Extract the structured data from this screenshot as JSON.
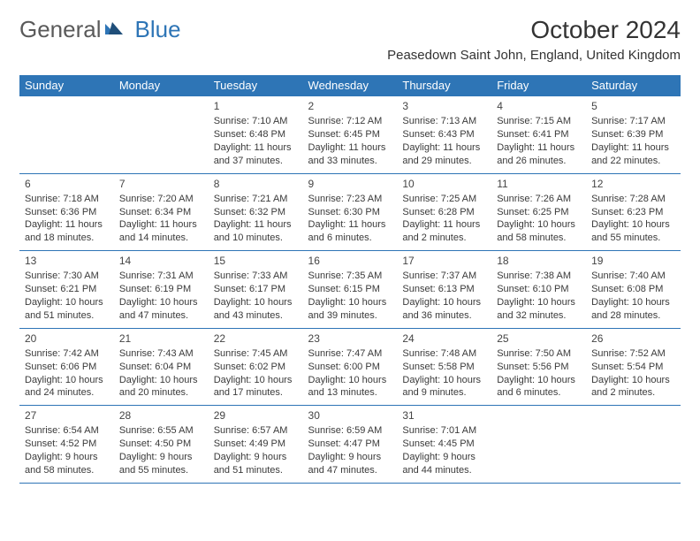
{
  "logo": {
    "text_general": "General",
    "text_blue": "Blue"
  },
  "header": {
    "month_title": "October 2024",
    "location": "Peasedown Saint John, England, United Kingdom"
  },
  "colors": {
    "header_bg": "#2e75b6",
    "header_text": "#ffffff",
    "border": "#2e75b6",
    "body_text": "#3a3a3a"
  },
  "weekdays": [
    "Sunday",
    "Monday",
    "Tuesday",
    "Wednesday",
    "Thursday",
    "Friday",
    "Saturday"
  ],
  "cells": [
    {
      "day": "",
      "lines": [
        "",
        "",
        "",
        ""
      ]
    },
    {
      "day": "",
      "lines": [
        "",
        "",
        "",
        ""
      ]
    },
    {
      "day": "1",
      "lines": [
        "Sunrise: 7:10 AM",
        "Sunset: 6:48 PM",
        "Daylight: 11 hours",
        "and 37 minutes."
      ]
    },
    {
      "day": "2",
      "lines": [
        "Sunrise: 7:12 AM",
        "Sunset: 6:45 PM",
        "Daylight: 11 hours",
        "and 33 minutes."
      ]
    },
    {
      "day": "3",
      "lines": [
        "Sunrise: 7:13 AM",
        "Sunset: 6:43 PM",
        "Daylight: 11 hours",
        "and 29 minutes."
      ]
    },
    {
      "day": "4",
      "lines": [
        "Sunrise: 7:15 AM",
        "Sunset: 6:41 PM",
        "Daylight: 11 hours",
        "and 26 minutes."
      ]
    },
    {
      "day": "5",
      "lines": [
        "Sunrise: 7:17 AM",
        "Sunset: 6:39 PM",
        "Daylight: 11 hours",
        "and 22 minutes."
      ]
    },
    {
      "day": "6",
      "lines": [
        "Sunrise: 7:18 AM",
        "Sunset: 6:36 PM",
        "Daylight: 11 hours",
        "and 18 minutes."
      ]
    },
    {
      "day": "7",
      "lines": [
        "Sunrise: 7:20 AM",
        "Sunset: 6:34 PM",
        "Daylight: 11 hours",
        "and 14 minutes."
      ]
    },
    {
      "day": "8",
      "lines": [
        "Sunrise: 7:21 AM",
        "Sunset: 6:32 PM",
        "Daylight: 11 hours",
        "and 10 minutes."
      ]
    },
    {
      "day": "9",
      "lines": [
        "Sunrise: 7:23 AM",
        "Sunset: 6:30 PM",
        "Daylight: 11 hours",
        "and 6 minutes."
      ]
    },
    {
      "day": "10",
      "lines": [
        "Sunrise: 7:25 AM",
        "Sunset: 6:28 PM",
        "Daylight: 11 hours",
        "and 2 minutes."
      ]
    },
    {
      "day": "11",
      "lines": [
        "Sunrise: 7:26 AM",
        "Sunset: 6:25 PM",
        "Daylight: 10 hours",
        "and 58 minutes."
      ]
    },
    {
      "day": "12",
      "lines": [
        "Sunrise: 7:28 AM",
        "Sunset: 6:23 PM",
        "Daylight: 10 hours",
        "and 55 minutes."
      ]
    },
    {
      "day": "13",
      "lines": [
        "Sunrise: 7:30 AM",
        "Sunset: 6:21 PM",
        "Daylight: 10 hours",
        "and 51 minutes."
      ]
    },
    {
      "day": "14",
      "lines": [
        "Sunrise: 7:31 AM",
        "Sunset: 6:19 PM",
        "Daylight: 10 hours",
        "and 47 minutes."
      ]
    },
    {
      "day": "15",
      "lines": [
        "Sunrise: 7:33 AM",
        "Sunset: 6:17 PM",
        "Daylight: 10 hours",
        "and 43 minutes."
      ]
    },
    {
      "day": "16",
      "lines": [
        "Sunrise: 7:35 AM",
        "Sunset: 6:15 PM",
        "Daylight: 10 hours",
        "and 39 minutes."
      ]
    },
    {
      "day": "17",
      "lines": [
        "Sunrise: 7:37 AM",
        "Sunset: 6:13 PM",
        "Daylight: 10 hours",
        "and 36 minutes."
      ]
    },
    {
      "day": "18",
      "lines": [
        "Sunrise: 7:38 AM",
        "Sunset: 6:10 PM",
        "Daylight: 10 hours",
        "and 32 minutes."
      ]
    },
    {
      "day": "19",
      "lines": [
        "Sunrise: 7:40 AM",
        "Sunset: 6:08 PM",
        "Daylight: 10 hours",
        "and 28 minutes."
      ]
    },
    {
      "day": "20",
      "lines": [
        "Sunrise: 7:42 AM",
        "Sunset: 6:06 PM",
        "Daylight: 10 hours",
        "and 24 minutes."
      ]
    },
    {
      "day": "21",
      "lines": [
        "Sunrise: 7:43 AM",
        "Sunset: 6:04 PM",
        "Daylight: 10 hours",
        "and 20 minutes."
      ]
    },
    {
      "day": "22",
      "lines": [
        "Sunrise: 7:45 AM",
        "Sunset: 6:02 PM",
        "Daylight: 10 hours",
        "and 17 minutes."
      ]
    },
    {
      "day": "23",
      "lines": [
        "Sunrise: 7:47 AM",
        "Sunset: 6:00 PM",
        "Daylight: 10 hours",
        "and 13 minutes."
      ]
    },
    {
      "day": "24",
      "lines": [
        "Sunrise: 7:48 AM",
        "Sunset: 5:58 PM",
        "Daylight: 10 hours",
        "and 9 minutes."
      ]
    },
    {
      "day": "25",
      "lines": [
        "Sunrise: 7:50 AM",
        "Sunset: 5:56 PM",
        "Daylight: 10 hours",
        "and 6 minutes."
      ]
    },
    {
      "day": "26",
      "lines": [
        "Sunrise: 7:52 AM",
        "Sunset: 5:54 PM",
        "Daylight: 10 hours",
        "and 2 minutes."
      ]
    },
    {
      "day": "27",
      "lines": [
        "Sunrise: 6:54 AM",
        "Sunset: 4:52 PM",
        "Daylight: 9 hours",
        "and 58 minutes."
      ]
    },
    {
      "day": "28",
      "lines": [
        "Sunrise: 6:55 AM",
        "Sunset: 4:50 PM",
        "Daylight: 9 hours",
        "and 55 minutes."
      ]
    },
    {
      "day": "29",
      "lines": [
        "Sunrise: 6:57 AM",
        "Sunset: 4:49 PM",
        "Daylight: 9 hours",
        "and 51 minutes."
      ]
    },
    {
      "day": "30",
      "lines": [
        "Sunrise: 6:59 AM",
        "Sunset: 4:47 PM",
        "Daylight: 9 hours",
        "and 47 minutes."
      ]
    },
    {
      "day": "31",
      "lines": [
        "Sunrise: 7:01 AM",
        "Sunset: 4:45 PM",
        "Daylight: 9 hours",
        "and 44 minutes."
      ]
    },
    {
      "day": "",
      "lines": [
        "",
        "",
        "",
        ""
      ]
    },
    {
      "day": "",
      "lines": [
        "",
        "",
        "",
        ""
      ]
    }
  ]
}
